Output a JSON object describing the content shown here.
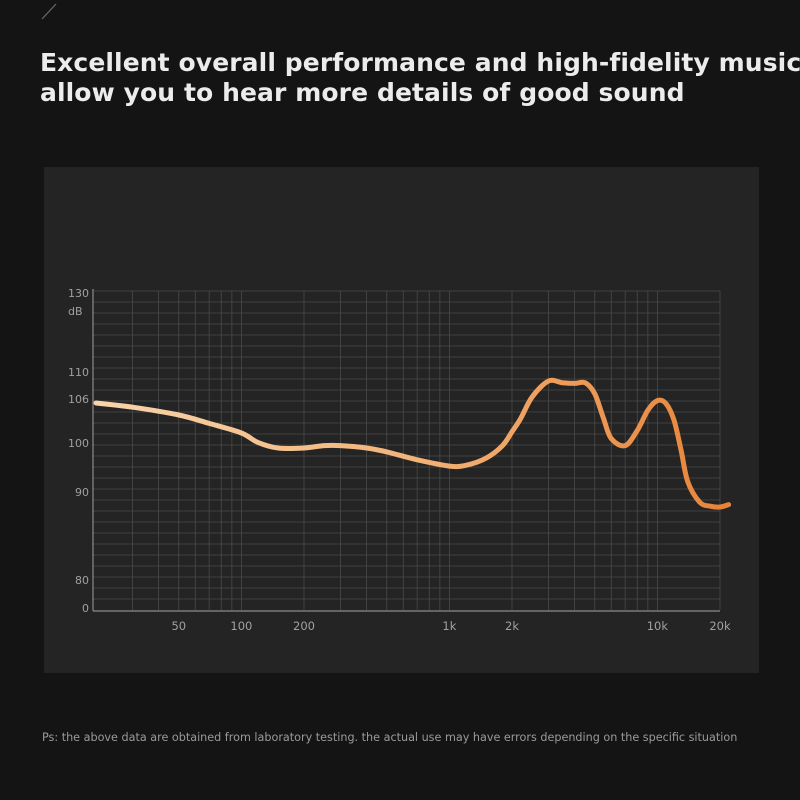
{
  "headline": {
    "line1": "Excellent overall performance and high-fidelity music",
    "line2": "allow you to hear more details of good sound"
  },
  "footnote": "Ps: the above data are obtained from laboratory testing. the actual use may have errors depending on the specific situation",
  "colors": {
    "background": "#141414",
    "panel": "#242424",
    "grid": "#4a4a4a",
    "curve_start": "#f7d0a4",
    "curve_end": "#e8843a",
    "top_rule": "#c8874a"
  },
  "chart_data": {
    "type": "line",
    "x_scale": "log",
    "y_unit": "dB",
    "y_tick_labels": [
      "130",
      "110",
      "106",
      "100",
      "90",
      "80",
      "0"
    ],
    "x_tick_labels": [
      "50",
      "100",
      "200",
      "1k",
      "2k",
      "10k",
      "20k"
    ],
    "x_tick_values": [
      50,
      100,
      200,
      1000,
      2000,
      10000,
      20000
    ],
    "grid": true,
    "series": [
      {
        "x": [
          20,
          30,
          50,
          70,
          100,
          120,
          150,
          200,
          250,
          300,
          400,
          500,
          700,
          1000,
          1200,
          1500,
          1800,
          2000,
          2200,
          2500,
          3000,
          3500,
          4000,
          4500,
          5000,
          5500,
          6000,
          7000,
          8000,
          9000,
          10000,
          11000,
          12000,
          13000,
          14000,
          16000,
          18000,
          20000,
          22000
        ],
        "y": [
          106,
          105.3,
          104,
          102.6,
          101,
          99.8,
          99.1,
          99.1,
          99.4,
          99.4,
          99.1,
          98.6,
          97.6,
          96.8,
          96.9,
          97.8,
          99.4,
          101.2,
          103.4,
          107,
          109.6,
          109.3,
          109.2,
          109.3,
          107.5,
          103.5,
          100.3,
          99.4,
          101.4,
          104.8,
          106.4,
          105.9,
          103.2,
          98.8,
          94.8,
          92.2,
          91.7,
          91.6,
          91.9
        ]
      }
    ]
  }
}
